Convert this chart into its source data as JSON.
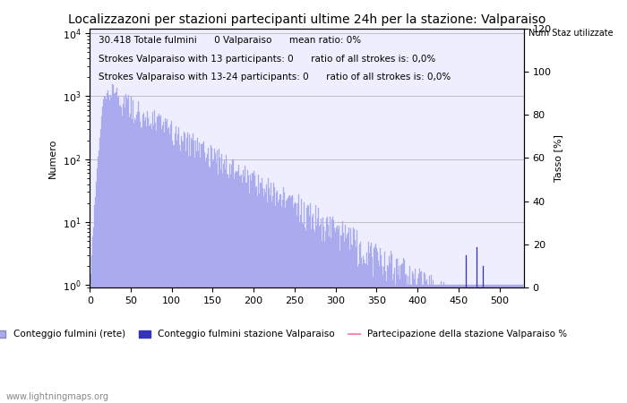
{
  "title": "Localizzazoni per stazioni partecipanti ultime 24h per la stazione: Valparaiso",
  "subtitle_line1": "30.418 Totale fulmini      0 Valparaiso      mean ratio: 0%",
  "subtitle_line2": "Strokes Valparaiso with 13 participants: 0      ratio of all strokes is: 0,0%",
  "subtitle_line3": "Strokes Valparaiso with 13-24 participants: 0      ratio of all strokes is: 0,0%",
  "ylabel_left": "Numero",
  "ylabel_right": "Tasso [%]",
  "xlim": [
    0,
    530
  ],
  "ylim_right": [
    0,
    120
  ],
  "bar_color_light": "#aaaaee",
  "bar_color_dark": "#3333bb",
  "line_color": "#ff88bb",
  "background_color": "#eeeeff",
  "grid_color": "#aaaaaa",
  "title_fontsize": 10,
  "subtitle_fontsize": 7.5,
  "axis_fontsize": 8,
  "legend_entries": [
    "Conteggio fulmini (rete)",
    "Conteggio fulmini stazione Valparaiso",
    "Num Staz utilizzate",
    "Partecipazione della stazione Valparaiso %"
  ],
  "watermark": "www.lightningmaps.org"
}
